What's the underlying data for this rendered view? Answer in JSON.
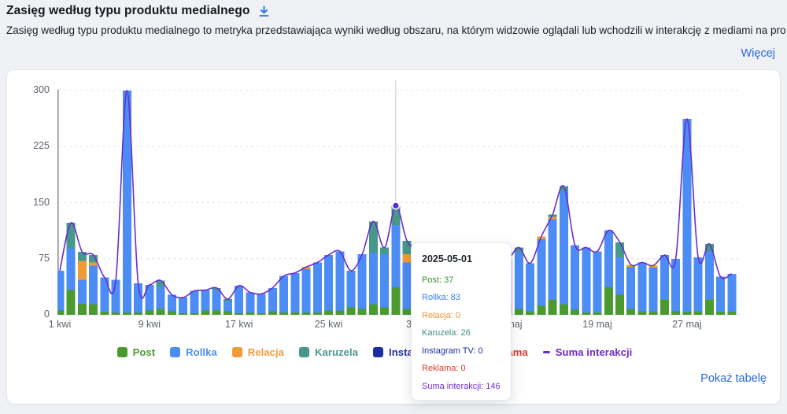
{
  "header": {
    "title": "Zasięg według typu produktu medialnego",
    "description": "Zasięg według typu produktu medialnego to metryka przedstawiająca wyniki według obszaru, na którym widzowie oglądali lub wchodzili w interakcję z mediami na prof...",
    "more_link": "Więcej"
  },
  "footer": {
    "show_table_link": "Pokaż tabelę"
  },
  "icons": {
    "download": "download-arrow"
  },
  "colors": {
    "link_blue": "#2867e0",
    "axis": "#899098",
    "grid": "#e2e4e9",
    "crosshair": "#c7cad0",
    "label": "#5c626b"
  },
  "tooltip": {
    "date": "2025-05-01",
    "rows": [
      {
        "label": "Post",
        "value": 37,
        "color": "#3f9138"
      },
      {
        "label": "Rollka",
        "value": 83,
        "color": "#3b82ef"
      },
      {
        "label": "Relacja",
        "value": 0,
        "color": "#ef9434"
      },
      {
        "label": "Karuzela",
        "value": 26,
        "color": "#3d9184"
      },
      {
        "label": "Instagram TV",
        "value": 0,
        "color": "#1c2f9e"
      },
      {
        "label": "Reklama",
        "value": 0,
        "color": "#d93a2f"
      },
      {
        "label": "Suma interakcji",
        "value": 146,
        "color": "#7230d9"
      }
    ]
  },
  "chart_data": {
    "type": "bar",
    "subtype": "stacked-bars-with-line",
    "title": "Zasięg według typu produktu medialnego",
    "xlabel": "",
    "ylabel": "",
    "ylim": [
      0,
      300
    ],
    "yticks": [
      0,
      75,
      150,
      225,
      300
    ],
    "grid": "dashed-horizontal",
    "legend_position": "bottom-center",
    "x_tick_labels": [
      "1 kwi",
      "9 kwi",
      "17 kwi",
      "25 kwi",
      "3 maj",
      "11 maj",
      "19 maj",
      "27 maj"
    ],
    "x_tick_indices": [
      0,
      8,
      16,
      24,
      32,
      40,
      48,
      56
    ],
    "categories": [
      "2025-04-01",
      "2025-04-02",
      "2025-04-03",
      "2025-04-04",
      "2025-04-05",
      "2025-04-06",
      "2025-04-07",
      "2025-04-08",
      "2025-04-09",
      "2025-04-10",
      "2025-04-11",
      "2025-04-12",
      "2025-04-13",
      "2025-04-14",
      "2025-04-15",
      "2025-04-16",
      "2025-04-17",
      "2025-04-18",
      "2025-04-19",
      "2025-04-20",
      "2025-04-21",
      "2025-04-22",
      "2025-04-23",
      "2025-04-24",
      "2025-04-25",
      "2025-04-26",
      "2025-04-27",
      "2025-04-28",
      "2025-04-29",
      "2025-04-30",
      "2025-05-01",
      "2025-05-02",
      "2025-05-03",
      "2025-05-04",
      "2025-05-05",
      "2025-05-06",
      "2025-05-07",
      "2025-05-08",
      "2025-05-09",
      "2025-05-10",
      "2025-05-11",
      "2025-05-12",
      "2025-05-13",
      "2025-05-14",
      "2025-05-15",
      "2025-05-16",
      "2025-05-17",
      "2025-05-18",
      "2025-05-19",
      "2025-05-20",
      "2025-05-21",
      "2025-05-22",
      "2025-05-23",
      "2025-05-24",
      "2025-05-25",
      "2025-05-26",
      "2025-05-27",
      "2025-05-28",
      "2025-05-29",
      "2025-05-30",
      "2025-05-31"
    ],
    "series": [
      {
        "name": "Post",
        "color": "#4a9a30",
        "values": [
          6,
          33,
          15,
          14,
          4,
          3,
          3,
          3,
          6,
          8,
          5,
          2,
          2,
          6,
          6,
          5,
          2,
          3,
          2,
          5,
          3,
          3,
          3,
          3,
          6,
          6,
          10,
          8,
          14,
          10,
          37,
          8,
          8,
          6,
          5,
          5,
          5,
          6,
          6,
          8,
          8,
          8,
          5,
          12,
          20,
          14,
          7,
          3,
          3,
          37,
          27,
          8,
          5,
          5,
          20,
          5,
          4,
          5,
          20,
          4,
          4
        ]
      },
      {
        "name": "Rollka",
        "color": "#4b8cf5",
        "values": [
          53,
          56,
          32,
          52,
          46,
          44,
          297,
          39,
          34,
          30,
          22,
          21,
          30,
          27,
          27,
          13,
          37,
          27,
          26,
          31,
          49,
          53,
          58,
          67,
          74,
          79,
          49,
          73,
          69,
          71,
          83,
          62,
          70,
          64,
          55,
          50,
          55,
          59,
          64,
          62,
          60,
          76,
          64,
          89,
          108,
          152,
          86,
          87,
          82,
          76,
          50,
          56,
          65,
          58,
          60,
          70,
          258,
          72,
          65,
          47,
          51
        ]
      },
      {
        "name": "Relacja",
        "color": "#f19b38",
        "values": [
          0,
          0,
          25,
          4,
          0,
          0,
          0,
          0,
          0,
          0,
          0,
          0,
          0,
          0,
          0,
          0,
          0,
          0,
          0,
          0,
          0,
          0,
          3,
          0,
          0,
          0,
          0,
          0,
          0,
          0,
          0,
          11,
          0,
          0,
          0,
          0,
          0,
          0,
          0,
          0,
          0,
          0,
          0,
          4,
          3,
          0,
          0,
          0,
          0,
          0,
          0,
          3,
          0,
          3,
          0,
          0,
          0,
          0,
          0,
          0,
          0
        ]
      },
      {
        "name": "Karuzela",
        "color": "#46988a",
        "values": [
          0,
          34,
          12,
          10,
          0,
          0,
          0,
          0,
          0,
          8,
          0,
          0,
          0,
          0,
          3,
          3,
          0,
          0,
          0,
          0,
          0,
          0,
          0,
          0,
          0,
          0,
          0,
          0,
          42,
          9,
          26,
          18,
          7,
          0,
          0,
          0,
          0,
          0,
          0,
          4,
          6,
          6,
          0,
          0,
          3,
          6,
          0,
          0,
          0,
          0,
          20,
          0,
          0,
          0,
          0,
          0,
          0,
          0,
          10,
          0,
          0
        ]
      },
      {
        "name": "Instagram TV",
        "color": "#1c2f9e",
        "values": [
          0,
          0,
          0,
          0,
          0,
          0,
          0,
          0,
          0,
          0,
          0,
          0,
          0,
          0,
          0,
          0,
          0,
          0,
          0,
          0,
          0,
          0,
          0,
          0,
          0,
          0,
          0,
          0,
          0,
          0,
          0,
          0,
          0,
          0,
          0,
          0,
          0,
          0,
          0,
          0,
          0,
          0,
          0,
          0,
          0,
          0,
          0,
          0,
          0,
          0,
          0,
          0,
          0,
          0,
          0,
          0,
          0,
          0,
          0,
          0,
          0
        ]
      },
      {
        "name": "Reklama",
        "color": "#d93a2f",
        "values": [
          0,
          0,
          0,
          0,
          0,
          0,
          0,
          0,
          0,
          0,
          0,
          0,
          0,
          0,
          0,
          0,
          0,
          0,
          0,
          0,
          0,
          0,
          0,
          0,
          0,
          0,
          0,
          0,
          0,
          0,
          0,
          0,
          0,
          0,
          0,
          0,
          0,
          0,
          0,
          0,
          0,
          0,
          0,
          0,
          0,
          0,
          0,
          0,
          0,
          0,
          0,
          0,
          0,
          0,
          0,
          0,
          0,
          0,
          0,
          0,
          0
        ]
      }
    ],
    "line_series": {
      "name": "Suma interakcji",
      "color": "#6d2ccf",
      "values_note": "sum of stacked series per day; 146 on 2025-05-01"
    },
    "highlight": {
      "index": 30,
      "date": "2025-05-01",
      "total": 146
    }
  }
}
